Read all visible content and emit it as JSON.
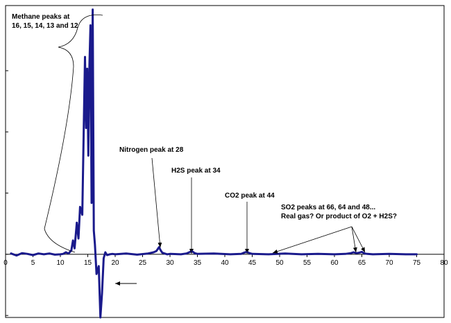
{
  "chart_data": {
    "type": "line",
    "title": "",
    "xlabel": "",
    "ylabel": "",
    "xlim": [
      0,
      80
    ],
    "ylim": [
      -1.6,
      6.3
    ],
    "grid": false,
    "legend": "none",
    "line_color": "#1a1a8c",
    "x_ticks": [
      "0",
      "5",
      "10",
      "15",
      "20",
      "25",
      "30",
      "35",
      "40",
      "45",
      "50",
      "55",
      "60",
      "65",
      "70",
      "75",
      "80"
    ],
    "series": [
      {
        "x": [
          1,
          2,
          3,
          4,
          5,
          6,
          7,
          8,
          9,
          10,
          10.5,
          11,
          11.5,
          12,
          12.3,
          12.6,
          13,
          13.3,
          13.6,
          14,
          14.3,
          14.5,
          14.7,
          14.9,
          15.1,
          15.3,
          15.5,
          15.7,
          15.9,
          16.1,
          16.3,
          16.6,
          17,
          17.3,
          17.6,
          17.9,
          18.2,
          18.5,
          19,
          19.5,
          20,
          22,
          24,
          26,
          27,
          27.5,
          28,
          28.3,
          28.6,
          29,
          29.5,
          30,
          32,
          33,
          33.5,
          34,
          34.5,
          35,
          38,
          41,
          43,
          43.5,
          44,
          44.5,
          45,
          48,
          51,
          54,
          57,
          60,
          62,
          63,
          63.5,
          64,
          64.5,
          65,
          65.5,
          66,
          67,
          70,
          73,
          75
        ],
        "y": [
          0.02,
          -0.03,
          0.03,
          0.01,
          -0.02,
          0.02,
          0.0,
          0.02,
          -0.01,
          0.0,
          0.01,
          0.05,
          0.02,
          0.1,
          0.35,
          0.15,
          0.8,
          0.4,
          1.2,
          1.0,
          3.5,
          5.0,
          3.2,
          4.7,
          2.5,
          4.8,
          5.8,
          1.3,
          6.2,
          0.6,
          0.25,
          -0.5,
          -0.3,
          -1.6,
          -1.0,
          -0.1,
          0.05,
          -0.02,
          0.0,
          0.01,
          0.0,
          0.02,
          -0.01,
          0.02,
          0.05,
          0.08,
          0.18,
          0.1,
          0.04,
          0.02,
          0.0,
          0.01,
          0.0,
          0.02,
          0.05,
          0.08,
          0.03,
          0.01,
          0.02,
          0.0,
          0.01,
          0.04,
          0.06,
          0.03,
          0.01,
          0.0,
          0.02,
          0.0,
          0.01,
          0.0,
          0.01,
          0.03,
          0.05,
          0.03,
          0.04,
          0.06,
          0.02,
          0.01,
          0.0,
          0.01,
          0.0,
          0.0
        ]
      }
    ],
    "annotations": [
      {
        "lines": [
          "Methane peaks at",
          "16, 15, 14, 13 and 12"
        ]
      },
      {
        "lines": [
          "Nitrogen peak at 28"
        ]
      },
      {
        "lines": [
          "H2S peak at 34"
        ]
      },
      {
        "lines": [
          "CO2 peak at 44"
        ]
      },
      {
        "lines": [
          "SO2 peaks at 66, 64 and 48...",
          "Real gas? Or product of O2 + H2S?"
        ]
      }
    ]
  }
}
